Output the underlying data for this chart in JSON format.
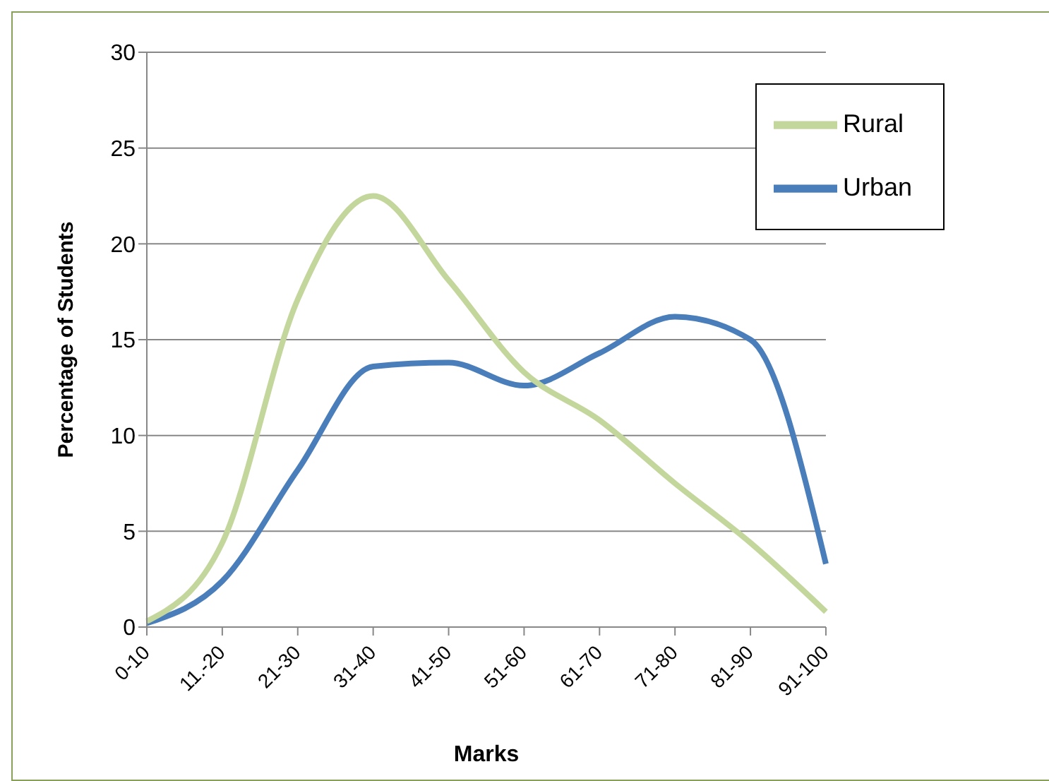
{
  "chart_data": {
    "type": "line",
    "xlabel": "Marks",
    "ylabel": "Percentage of Students",
    "categories": [
      "0-10",
      "11.-20",
      "21-30",
      "31-40",
      "41-50",
      "51-60",
      "61-70",
      "71-80",
      "81-90",
      "91-100"
    ],
    "series": [
      {
        "name": "Urban",
        "color": "#4a7ebb",
        "values": [
          0.2,
          2.4,
          8.2,
          13.6,
          13.8,
          12.6,
          14.3,
          16.2,
          15.0,
          3.3
        ]
      },
      {
        "name": "Rural",
        "color": "#c3d69b",
        "values": [
          0.3,
          4.4,
          17.1,
          22.5,
          18.1,
          13.3,
          10.8,
          7.5,
          4.4,
          0.8
        ]
      }
    ],
    "ylim": [
      0,
      30
    ],
    "yticks": [
      0,
      5,
      10,
      15,
      20,
      25,
      30
    ],
    "grid": "y",
    "legend": "top right",
    "marker": "none",
    "line_style": "solid"
  }
}
